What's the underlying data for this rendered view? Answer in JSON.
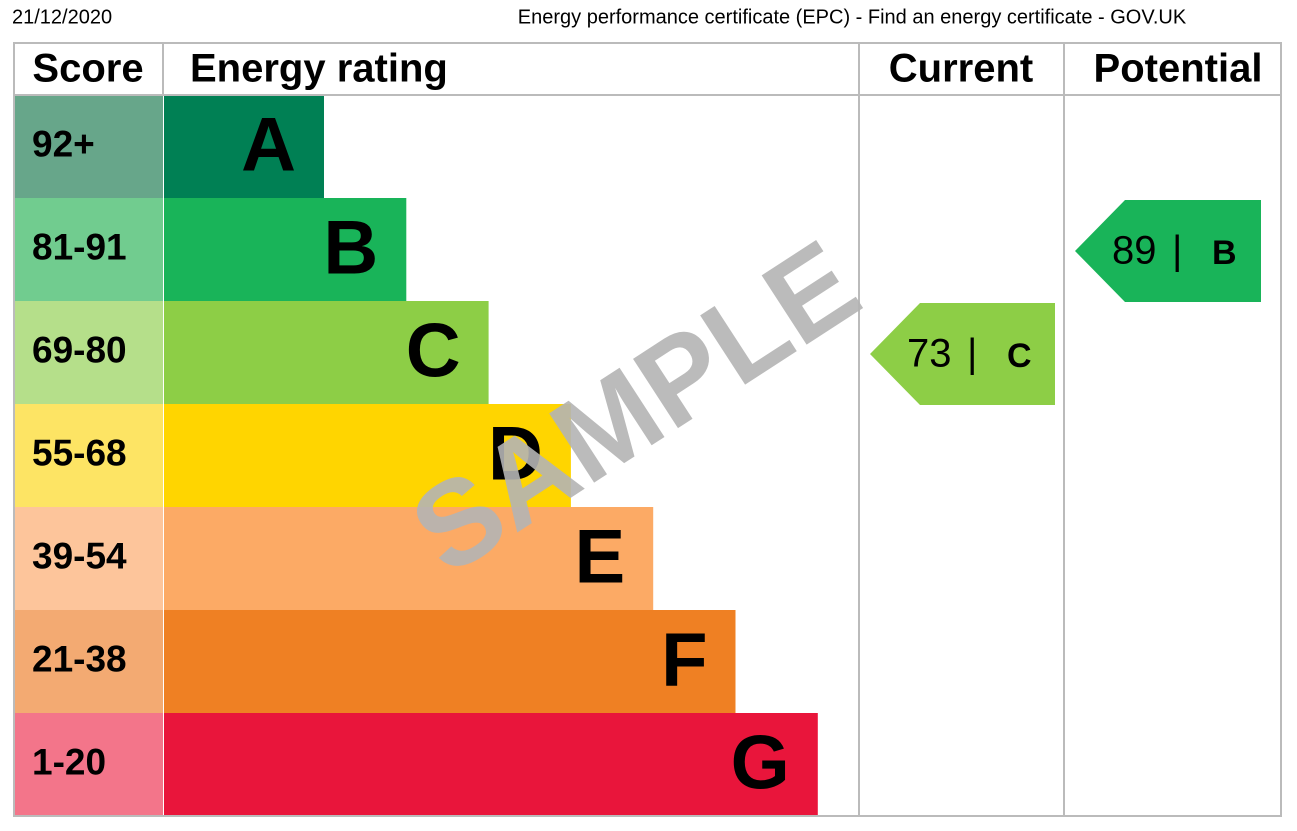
{
  "header": {
    "date": "21/12/2020",
    "title": "Energy performance certificate (EPC) - Find an energy certificate - GOV.UK"
  },
  "table": {
    "columns": [
      "Score",
      "Energy rating",
      "Current",
      "Potential"
    ],
    "bands": [
      {
        "score": "92+",
        "rating": "A",
        "color": "#008054",
        "score_color": "#67a68a"
      },
      {
        "score": "81-91",
        "rating": "B",
        "color": "#19b459",
        "score_color": "#71cc8f"
      },
      {
        "score": "69-80",
        "rating": "C",
        "color": "#8dce46",
        "score_color": "#b5df8a"
      },
      {
        "score": "55-68",
        "rating": "D",
        "color": "#ffd500",
        "score_color": "#fde464"
      },
      {
        "score": "39-54",
        "rating": "E",
        "color": "#fcaa65",
        "score_color": "#fdc59b"
      },
      {
        "score": "21-38",
        "rating": "F",
        "color": "#ef8023",
        "score_color": "#f3aa72"
      },
      {
        "score": "1-20",
        "rating": "G",
        "color": "#e9153b",
        "score_color": "#f3758a"
      }
    ],
    "current": {
      "value": 73,
      "rating": "C"
    },
    "potential": {
      "value": 89,
      "rating": "B"
    },
    "separator": "|"
  },
  "watermark": "SAMPLE"
}
